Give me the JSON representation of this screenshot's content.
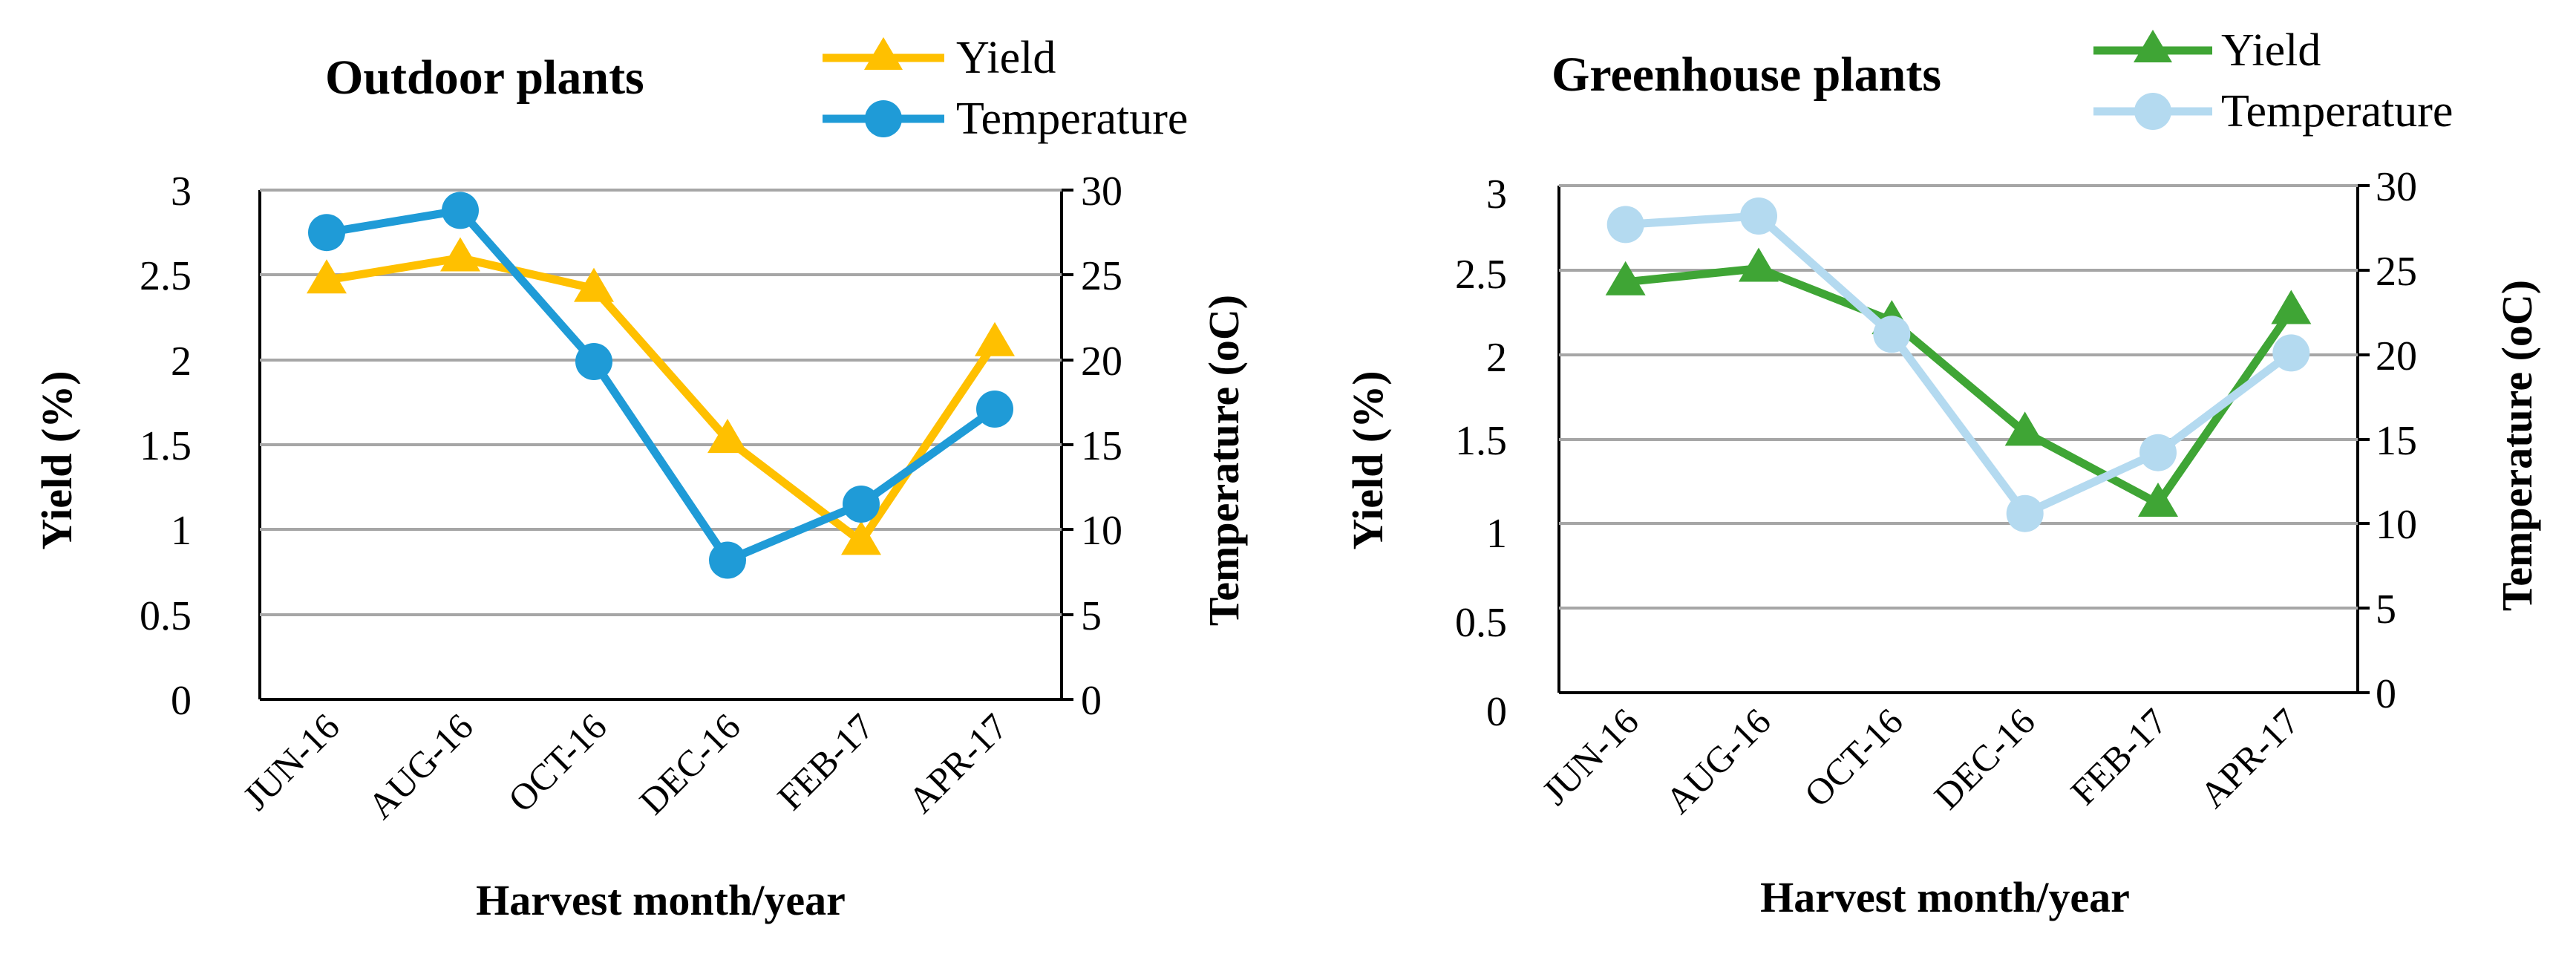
{
  "chart_data": [
    {
      "type": "line",
      "title": "Outdoor plants",
      "xlabel": "Harvest month/year",
      "ylabel": "Yield (%)",
      "y2label": "Temperature (oC)",
      "categories": [
        "JUN-16",
        "AUG-16",
        "OCT-16",
        "DEC-16",
        "FEB-17",
        "APR-17"
      ],
      "ylim": [
        0,
        3
      ],
      "yticks": [
        "0",
        "0.5",
        "1",
        "1.5",
        "2",
        "2.5",
        "3"
      ],
      "y2lim": [
        0,
        30
      ],
      "y2ticks": [
        "0",
        "5",
        "10",
        "15",
        "20",
        "25",
        "30"
      ],
      "grid": true,
      "legend_position": "top-right",
      "series": [
        {
          "name": "Yield",
          "axis": "left",
          "marker": "triangle",
          "color": "#FFC000",
          "values": [
            2.47,
            2.6,
            2.42,
            1.53,
            0.93,
            2.1
          ]
        },
        {
          "name": "Temperature",
          "axis": "right",
          "marker": "circle",
          "color": "#1F9BD7",
          "values": [
            27.5,
            28.8,
            19.9,
            8.2,
            11.5,
            17.1
          ]
        }
      ]
    },
    {
      "type": "line",
      "title": "Greenhouse plants",
      "xlabel": "Harvest month/year",
      "ylabel": "Yield (%)",
      "y2label": "Temperature (oC)",
      "categories": [
        "JUN-16",
        "AUG-16",
        "OCT-16",
        "DEC-16",
        "FEB-17",
        "APR-17"
      ],
      "ylim": [
        0,
        3
      ],
      "yticks": [
        "0",
        "0.5",
        "1",
        "1.5",
        "2",
        "2.5",
        "3"
      ],
      "y2lim": [
        0,
        30
      ],
      "y2ticks": [
        "0",
        "5",
        "10",
        "15",
        "20",
        "25",
        "30"
      ],
      "grid": true,
      "legend_position": "top-right",
      "series": [
        {
          "name": "Yield",
          "axis": "left",
          "marker": "triangle",
          "color": "#3FA535",
          "values": [
            2.43,
            2.51,
            2.2,
            1.54,
            1.12,
            2.26
          ]
        },
        {
          "name": "Temperature",
          "axis": "right",
          "marker": "circle",
          "color": "#B4DAF0",
          "values": [
            27.7,
            28.2,
            21.2,
            10.6,
            14.2,
            20.1
          ]
        }
      ]
    }
  ]
}
